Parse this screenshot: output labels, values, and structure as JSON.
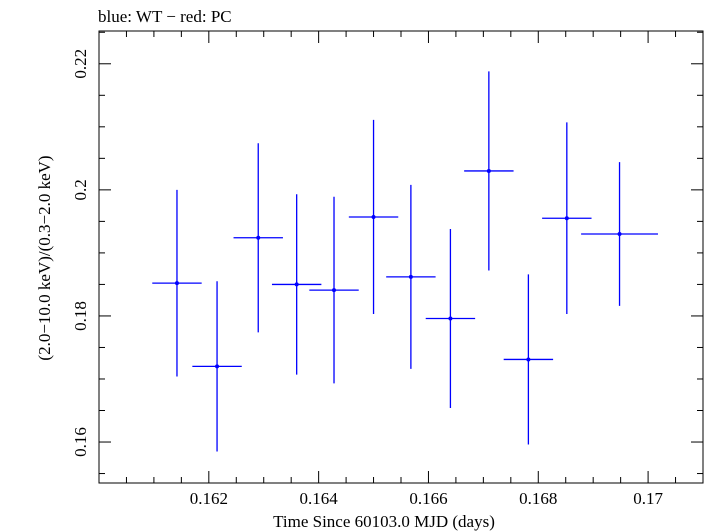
{
  "chart_data": {
    "type": "scatter",
    "title": "blue: WT − red: PC",
    "xlabel": "Time Since 60103.0 MJD (days)",
    "ylabel": "(2.0−10.0 keV)/(0.3−2.0 keV)",
    "xlim": [
      0.16,
      0.171
    ],
    "ylim": [
      0.1535,
      0.2252
    ],
    "x_ticks": [
      0.162,
      0.164,
      0.166,
      0.168,
      0.17
    ],
    "x_tick_labels": [
      "0.162",
      "0.164",
      "0.166",
      "0.168",
      "0.17"
    ],
    "x_minor_step": 0.0005,
    "y_ticks": [
      0.16,
      0.18,
      0.2,
      0.22
    ],
    "y_tick_labels": [
      "0.16",
      "0.18",
      "0.2",
      "0.22"
    ],
    "y_minor_step": 0.005,
    "grid": false,
    "series": [
      {
        "color": "#0000ff",
        "points": [
          {
            "x": 0.16142,
            "y": 0.1852,
            "xerr": 0.00045,
            "yerr": 0.0148
          },
          {
            "x": 0.16215,
            "y": 0.172,
            "xerr": 0.00045,
            "yerr": 0.0135
          },
          {
            "x": 0.1629,
            "y": 0.1924,
            "xerr": 0.00045,
            "yerr": 0.015
          },
          {
            "x": 0.1636,
            "y": 0.185,
            "xerr": 0.00045,
            "yerr": 0.0143
          },
          {
            "x": 0.16428,
            "y": 0.1841,
            "xerr": 0.00045,
            "yerr": 0.0148
          },
          {
            "x": 0.165,
            "y": 0.1957,
            "xerr": 0.00045,
            "yerr": 0.0154
          },
          {
            "x": 0.16568,
            "y": 0.1862,
            "xerr": 0.00045,
            "yerr": 0.0146
          },
          {
            "x": 0.1664,
            "y": 0.1796,
            "xerr": 0.00045,
            "yerr": 0.0142
          },
          {
            "x": 0.1671,
            "y": 0.203,
            "xerr": 0.00045,
            "yerr": 0.0158
          },
          {
            "x": 0.16782,
            "y": 0.1731,
            "xerr": 0.00045,
            "yerr": 0.0135
          },
          {
            "x": 0.16852,
            "y": 0.1955,
            "xerr": 0.00045,
            "yerr": 0.0152
          },
          {
            "x": 0.16948,
            "y": 0.193,
            "xerr": 0.0007,
            "yerr": 0.0114
          }
        ]
      }
    ]
  }
}
